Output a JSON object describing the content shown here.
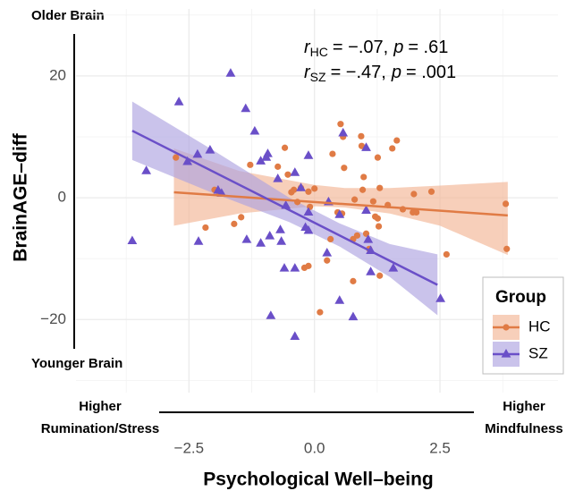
{
  "chart_data": {
    "type": "scatter",
    "xlabel": "Psychological Well–being",
    "ylabel": "BrainAGE–diff",
    "xlim": [
      -4.75,
      4.85
    ],
    "ylim": [
      -32,
      31
    ],
    "xticks": [
      {
        "value": -2.5,
        "label": "−2.5"
      },
      {
        "value": 0,
        "label": "0.0"
      },
      {
        "value": 2.5,
        "label": "2.5"
      }
    ],
    "yticks": [
      {
        "value": -20,
        "label": "−20"
      },
      0,
      20
    ],
    "xminor": [
      -3.75,
      -1.25,
      1.25,
      3.75
    ],
    "yminor": [
      -30,
      -10,
      10,
      30
    ],
    "grid": true,
    "legend_title": "Group",
    "legend_position": "bottom-right",
    "annotations": {
      "top": "Older Brain",
      "bottom": "Younger Brain",
      "left": [
        "Higher",
        "Rumination/Stress"
      ],
      "right": [
        "Higher",
        "Mindfulness"
      ]
    },
    "stats": [
      {
        "r": "r",
        "group": "HC",
        "r_value": "= −.07,",
        "p": "p",
        "p_value": "= .61"
      },
      {
        "r": "r",
        "group": "SZ",
        "r_value": "= −.47,",
        "p": "p",
        "p_value": "= .001"
      }
    ],
    "series": [
      {
        "name": "HC",
        "color": "#e07b45",
        "band_color": "#f2b595",
        "marker": "circle",
        "x": [
          -2.76,
          -1.99,
          -1.9,
          -2.17,
          -1.46,
          -1.6,
          -1.28,
          -0.73,
          -0.59,
          -0.53,
          -0.46,
          -0.41,
          -0.34,
          -0.27,
          -0.12,
          -0.09,
          0,
          -0.2,
          -0.12,
          0.11,
          0.36,
          0.52,
          0.57,
          0.59,
          0.46,
          0.55,
          0.25,
          0.32,
          0.77,
          0.85,
          0.93,
          0.94,
          0.96,
          0.98,
          1.03,
          1.09,
          1.26,
          1.3,
          1.17,
          1.21,
          1.26,
          1.28,
          1.3,
          0.77,
          0.8,
          1.46,
          1.55,
          1.64,
          1.76,
          1.96,
          1.98,
          2.03,
          2.33,
          2.63,
          3.81,
          3.83
        ],
        "values": [
          6.6,
          1.3,
          0.9,
          -4.9,
          -3.2,
          -4.3,
          5.4,
          5.1,
          8.2,
          3.8,
          0.9,
          1.3,
          -0.7,
          1.6,
          1.0,
          -1.5,
          1.5,
          -11.5,
          -11.2,
          -18.8,
          7.2,
          12.1,
          10,
          4.9,
          -2.4,
          -2.6,
          -10.3,
          -6.8,
          -6.8,
          -6.2,
          10.1,
          8.5,
          1.3,
          3.4,
          -5.9,
          -8.4,
          6.6,
          1.6,
          -0.6,
          -3.1,
          -3.4,
          -4.7,
          -12.8,
          -13.7,
          -0.3,
          -1.2,
          8.1,
          9.4,
          -1.9,
          -2.4,
          0.6,
          -2.4,
          1.0,
          -9.3,
          -1.0,
          -8.4
        ],
        "fit": {
          "x": [
            -2.8,
            3.85
          ],
          "y": [
            0.9,
            -2.9
          ]
        },
        "band": {
          "x": [
            -2.8,
            -1.5,
            0,
            0.6,
            1.5,
            2.5,
            3.85
          ],
          "upper": [
            8.1,
            4.4,
            2.1,
            1.6,
            1.6,
            2.0,
            2.6
          ],
          "lower": [
            -4.6,
            -2.6,
            -1.4,
            -1.6,
            -2.6,
            -4.6,
            -9.4
          ]
        }
      },
      {
        "name": "SZ",
        "color": "#6a4fc8",
        "band_color": "#aea3e0",
        "marker": "triangle",
        "x": [
          -3.63,
          -3.35,
          -2.7,
          -2.53,
          -2.33,
          -2.31,
          -2.08,
          -1.92,
          -1.85,
          -1.67,
          -1.37,
          -1.35,
          -1.19,
          -1.07,
          -1.07,
          -0.96,
          -0.93,
          -0.89,
          -0.87,
          -0.73,
          -0.68,
          -0.66,
          -0.6,
          -0.57,
          -0.39,
          -0.39,
          -0.39,
          -0.27,
          -0.18,
          -0.12,
          -0.12,
          -0.12,
          0.25,
          0.28,
          0.5,
          0.5,
          0.57,
          0.77,
          1.03,
          1.03,
          1.12,
          1.12,
          1.07,
          1.57,
          2.51
        ],
        "values": [
          -7.1,
          4.4,
          15.7,
          5.9,
          7.1,
          -7.2,
          7.8,
          1.2,
          0.7,
          20.4,
          14.6,
          -6.9,
          10.9,
          -7.5,
          6.0,
          6.6,
          7.2,
          -6.3,
          -19.4,
          3.1,
          -5.3,
          -7.2,
          -11.6,
          -1.3,
          4.1,
          -11.6,
          -22.8,
          1.6,
          -4.9,
          6.9,
          -5.4,
          -2.4,
          -9.1,
          -0.7,
          -2.8,
          -16.9,
          10.6,
          -19.6,
          -2.1,
          8.2,
          -8.7,
          -12.2,
          -6.9,
          -11.6,
          -16.6
        ],
        "fit": {
          "x": [
            -3.63,
            2.45
          ],
          "y": [
            11.0,
            -14.3
          ]
        },
        "band": {
          "x": [
            -3.63,
            -2,
            -0.5,
            0.5,
            1.5,
            2.45
          ],
          "upper": [
            15.8,
            7.7,
            0,
            -4.2,
            -7.6,
            -9.3
          ],
          "lower": [
            6.2,
            0.7,
            -4.0,
            -8.0,
            -13,
            -19.3
          ]
        }
      }
    ]
  }
}
